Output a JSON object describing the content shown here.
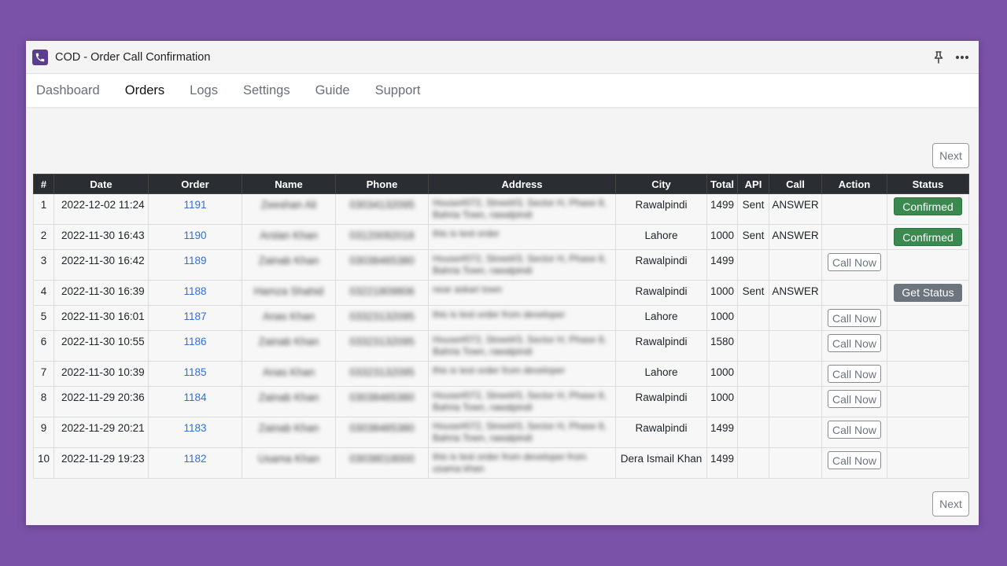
{
  "app": {
    "title": "COD - Order Call Confirmation"
  },
  "nav": [
    "Dashboard",
    "Orders",
    "Logs",
    "Settings",
    "Guide",
    "Support"
  ],
  "nav_active": "Orders",
  "pager": {
    "next_label": "Next"
  },
  "table": {
    "headers": [
      "#",
      "Date",
      "Order",
      "Name",
      "Phone",
      "Address",
      "City",
      "Total",
      "API",
      "Call",
      "Action",
      "Status"
    ],
    "rows": [
      {
        "num": "1",
        "date": "2022-12-02 11:24",
        "order": "1191",
        "name": "Zeeshan Ali",
        "phone": "03034132095",
        "address": "House#072, Street#3, Sector H, Phase 8, Bahria Town, rawalpindi",
        "city": "Rawalpindi",
        "total": "1499",
        "api": "Sent",
        "call": "ANSWER",
        "action": "",
        "status": "Confirmed",
        "status_type": "confirmed"
      },
      {
        "num": "2",
        "date": "2022-11-30 16:43",
        "order": "1190",
        "name": "Arslan Khan",
        "phone": "03120092016",
        "address": "this is test order",
        "city": "Lahore",
        "total": "1000",
        "api": "Sent",
        "call": "ANSWER",
        "action": "",
        "status": "Confirmed",
        "status_type": "confirmed"
      },
      {
        "num": "3",
        "date": "2022-11-30 16:42",
        "order": "1189",
        "name": "Zainab Khan",
        "phone": "03038465380",
        "address": "House#072, Street#3, Sector H, Phase 8, Bahria Town, rawalpindi",
        "city": "Rawalpindi",
        "total": "1499",
        "api": "",
        "call": "",
        "action": "Call Now",
        "status": "",
        "status_type": ""
      },
      {
        "num": "4",
        "date": "2022-11-30 16:39",
        "order": "1188",
        "name": "Hamza Shahid",
        "phone": "03221809806",
        "address": "near askari town",
        "city": "Rawalpindi",
        "total": "1000",
        "api": "Sent",
        "call": "ANSWER",
        "action": "",
        "status": "Get Status",
        "status_type": "get"
      },
      {
        "num": "5",
        "date": "2022-11-30 16:01",
        "order": "1187",
        "name": "Anas Khan",
        "phone": "03323132095",
        "address": "this is test order from developer",
        "city": "Lahore",
        "total": "1000",
        "api": "",
        "call": "",
        "action": "Call Now",
        "status": "",
        "status_type": ""
      },
      {
        "num": "6",
        "date": "2022-11-30 10:55",
        "order": "1186",
        "name": "Zainab Khan",
        "phone": "03323132095",
        "address": "House#072, Street#3, Sector H, Phase 8, Bahria Town, rawalpindi",
        "city": "Rawalpindi",
        "total": "1580",
        "api": "",
        "call": "",
        "action": "Call Now",
        "status": "",
        "status_type": ""
      },
      {
        "num": "7",
        "date": "2022-11-30 10:39",
        "order": "1185",
        "name": "Anas Khan",
        "phone": "03323132095",
        "address": "this is test order from developer",
        "city": "Lahore",
        "total": "1000",
        "api": "",
        "call": "",
        "action": "Call Now",
        "status": "",
        "status_type": ""
      },
      {
        "num": "8",
        "date": "2022-11-29 20:36",
        "order": "1184",
        "name": "Zainab Khan",
        "phone": "03038465380",
        "address": "House#072, Street#3, Sector H, Phase 8, Bahria Town, rawalpindi",
        "city": "Rawalpindi",
        "total": "1000",
        "api": "",
        "call": "",
        "action": "Call Now",
        "status": "",
        "status_type": ""
      },
      {
        "num": "9",
        "date": "2022-11-29 20:21",
        "order": "1183",
        "name": "Zainab Khan",
        "phone": "03038465380",
        "address": "House#072, Street#3, Sector H, Phase 8, Bahria Town, rawalpindi",
        "city": "Rawalpindi",
        "total": "1499",
        "api": "",
        "call": "",
        "action": "Call Now",
        "status": "",
        "status_type": ""
      },
      {
        "num": "10",
        "date": "2022-11-29 19:23",
        "order": "1182",
        "name": "Usama Khan",
        "phone": "03038018000",
        "address": "this is test order from developer from usama khan",
        "city": "Dera Ismail Khan",
        "total": "1499",
        "api": "",
        "call": "",
        "action": "Call Now",
        "status": "",
        "status_type": ""
      }
    ]
  },
  "colors": {
    "background": "#7a52a8",
    "confirmed": "#3a8a50",
    "get_status": "#6c757d",
    "link": "#2f6fd6",
    "header": "#2a2d31"
  },
  "icons": {
    "app": "phone-icon",
    "pin": "pin-icon",
    "more": "more-icon"
  }
}
